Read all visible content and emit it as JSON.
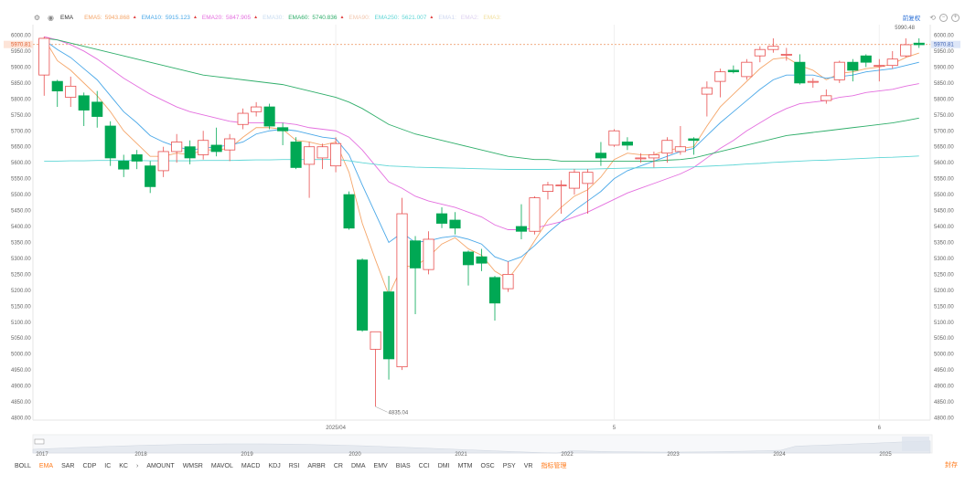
{
  "legend": {
    "indicator": "EMA",
    "items": [
      {
        "label": "EMA5:",
        "value": "5943.868",
        "color": "#f5a66a",
        "arrow": "▲"
      },
      {
        "label": "EMA10:",
        "value": "5915.123",
        "color": "#4aa8e8",
        "arrow": "▲"
      },
      {
        "label": "EMA20:",
        "value": "5847.905",
        "color": "#e46fdf",
        "arrow": "▲"
      },
      {
        "label": "EMA30:",
        "value": "",
        "color": "#c8dcf0",
        "arrow": ""
      },
      {
        "label": "EMA60:",
        "value": "5740.836",
        "color": "#2fae6a",
        "arrow": "▲"
      },
      {
        "label": "EMA90:",
        "value": "",
        "color": "#f2c8b0",
        "arrow": ""
      },
      {
        "label": "EMA250:",
        "value": "5621.007",
        "color": "#5fd6d6",
        "arrow": "▲"
      },
      {
        "label": "EMA1:",
        "value": "",
        "color": "#cfd8f0",
        "arrow": ""
      },
      {
        "label": "EMA2:",
        "value": "",
        "color": "#ddd0f0",
        "arrow": ""
      },
      {
        "label": "EMA3:",
        "value": "",
        "color": "#f2e0a0",
        "arrow": ""
      }
    ]
  },
  "topright": {
    "adjust": "前复权"
  },
  "chart_data": {
    "type": "candlestick",
    "ylim": [
      4770,
      6010
    ],
    "y_ticks": [
      "6000.00",
      "5950.00",
      "5900.00",
      "5850.00",
      "5800.00",
      "5750.00",
      "5700.00",
      "5650.00",
      "5600.00",
      "5550.00",
      "5500.00",
      "5450.00",
      "5400.00",
      "5350.00",
      "5300.00",
      "5250.00",
      "5200.00",
      "5150.00",
      "5100.00",
      "5050.00",
      "5000.00",
      "4950.00",
      "4900.00",
      "4850.00",
      "4800.00"
    ],
    "last_price": "5970.81",
    "high_label": "5990.48",
    "low_label": "4835.04",
    "x_labels": [
      "2025/04",
      "5",
      "6"
    ],
    "candles": [
      [
        5875,
        5990,
        5810,
        5995
      ],
      [
        5855,
        5825,
        5775,
        5860
      ],
      [
        5805,
        5840,
        5775,
        5870
      ],
      [
        5810,
        5765,
        5715,
        5820
      ],
      [
        5790,
        5745,
        5710,
        5825
      ],
      [
        5715,
        5615,
        5590,
        5730
      ],
      [
        5605,
        5580,
        5555,
        5625
      ],
      [
        5625,
        5605,
        5580,
        5640
      ],
      [
        5590,
        5525,
        5505,
        5605
      ],
      [
        5575,
        5635,
        5555,
        5650
      ],
      [
        5635,
        5665,
        5600,
        5690
      ],
      [
        5650,
        5615,
        5595,
        5670
      ],
      [
        5625,
        5670,
        5610,
        5700
      ],
      [
        5655,
        5635,
        5620,
        5710
      ],
      [
        5640,
        5675,
        5605,
        5690
      ],
      [
        5720,
        5755,
        5705,
        5770
      ],
      [
        5760,
        5775,
        5745,
        5790
      ],
      [
        5775,
        5715,
        5705,
        5785
      ],
      [
        5710,
        5700,
        5655,
        5725
      ],
      [
        5665,
        5585,
        5580,
        5680
      ],
      [
        5595,
        5650,
        5490,
        5665
      ],
      [
        5615,
        5650,
        5580,
        5660
      ],
      [
        5590,
        5660,
        5570,
        5680
      ],
      [
        5500,
        5395,
        5390,
        5510
      ],
      [
        5295,
        5075,
        5070,
        5300
      ],
      [
        5015,
        5070,
        4835,
        5070
      ],
      [
        5195,
        4985,
        4920,
        5245
      ],
      [
        4960,
        5440,
        4950,
        5490
      ],
      [
        5355,
        5270,
        5125,
        5370
      ],
      [
        5265,
        5360,
        5250,
        5385
      ],
      [
        5440,
        5410,
        5395,
        5460
      ],
      [
        5420,
        5395,
        5375,
        5445
      ],
      [
        5320,
        5280,
        5215,
        5325
      ],
      [
        5305,
        5285,
        5260,
        5330
      ],
      [
        5240,
        5160,
        5105,
        5245
      ],
      [
        5205,
        5250,
        5195,
        5290
      ],
      [
        5400,
        5385,
        5360,
        5470
      ],
      [
        5385,
        5490,
        5375,
        5495
      ],
      [
        5510,
        5530,
        5485,
        5540
      ],
      [
        5530,
        5530,
        5440,
        5545
      ],
      [
        5520,
        5570,
        5500,
        5580
      ],
      [
        5535,
        5570,
        5440,
        5580
      ],
      [
        5630,
        5615,
        5590,
        5665
      ],
      [
        5655,
        5700,
        5650,
        5705
      ],
      [
        5665,
        5655,
        5640,
        5680
      ],
      [
        5615,
        5615,
        5600,
        5630
      ],
      [
        5615,
        5625,
        5585,
        5635
      ],
      [
        5630,
        5670,
        5600,
        5680
      ],
      [
        5635,
        5650,
        5625,
        5715
      ],
      [
        5675,
        5670,
        5625,
        5680
      ],
      [
        5815,
        5835,
        5745,
        5855
      ],
      [
        5855,
        5885,
        5805,
        5895
      ],
      [
        5890,
        5885,
        5880,
        5905
      ],
      [
        5870,
        5915,
        5860,
        5925
      ],
      [
        5935,
        5955,
        5915,
        5965
      ],
      [
        5955,
        5965,
        5945,
        5990
      ],
      [
        5940,
        5940,
        5920,
        5960
      ],
      [
        5915,
        5850,
        5845,
        5940
      ],
      [
        5855,
        5855,
        5835,
        5865
      ],
      [
        5795,
        5810,
        5785,
        5830
      ],
      [
        5860,
        5915,
        5850,
        5920
      ],
      [
        5915,
        5890,
        5855,
        5925
      ],
      [
        5935,
        5915,
        5900,
        5940
      ],
      [
        5905,
        5905,
        5855,
        5925
      ],
      [
        5905,
        5925,
        5895,
        5950
      ],
      [
        5935,
        5970,
        5930,
        5990
      ],
      [
        5975,
        5970,
        5960,
        5990
      ]
    ],
    "series": [
      {
        "name": "EMA5",
        "color": "#f5a66a",
        "values": [
          5990,
          5920,
          5890,
          5850,
          5810,
          5760,
          5700,
          5660,
          5620,
          5620,
          5630,
          5625,
          5640,
          5640,
          5645,
          5680,
          5710,
          5710,
          5705,
          5670,
          5665,
          5655,
          5665,
          5570,
          5410,
          5295,
          5185,
          5275,
          5275,
          5305,
          5345,
          5365,
          5330,
          5310,
          5260,
          5235,
          5290,
          5355,
          5420,
          5460,
          5495,
          5515,
          5555,
          5610,
          5630,
          5625,
          5625,
          5640,
          5645,
          5650,
          5715,
          5775,
          5815,
          5855,
          5895,
          5925,
          5930,
          5905,
          5890,
          5860,
          5880,
          5885,
          5895,
          5900,
          5910,
          5930,
          5944
        ]
      },
      {
        "name": "EMA10",
        "color": "#4aa8e8",
        "values": [
          5985,
          5955,
          5930,
          5895,
          5860,
          5810,
          5760,
          5725,
          5685,
          5665,
          5650,
          5640,
          5645,
          5650,
          5655,
          5665,
          5690,
          5700,
          5705,
          5700,
          5690,
          5680,
          5675,
          5625,
          5530,
          5440,
          5350,
          5380,
          5350,
          5355,
          5365,
          5370,
          5360,
          5345,
          5305,
          5290,
          5305,
          5340,
          5380,
          5415,
          5450,
          5480,
          5510,
          5550,
          5575,
          5590,
          5605,
          5620,
          5635,
          5645,
          5685,
          5725,
          5760,
          5795,
          5830,
          5860,
          5875,
          5875,
          5875,
          5865,
          5870,
          5875,
          5885,
          5890,
          5895,
          5905,
          5915
        ]
      },
      {
        "name": "EMA20",
        "color": "#e46fdf",
        "values": [
          5995,
          5985,
          5970,
          5950,
          5925,
          5895,
          5865,
          5840,
          5815,
          5795,
          5775,
          5760,
          5750,
          5740,
          5730,
          5725,
          5725,
          5725,
          5725,
          5720,
          5710,
          5705,
          5700,
          5680,
          5640,
          5590,
          5540,
          5520,
          5495,
          5480,
          5470,
          5460,
          5445,
          5430,
          5405,
          5390,
          5390,
          5395,
          5405,
          5415,
          5430,
          5445,
          5465,
          5485,
          5505,
          5520,
          5535,
          5550,
          5565,
          5585,
          5615,
          5645,
          5670,
          5700,
          5725,
          5750,
          5770,
          5785,
          5790,
          5795,
          5805,
          5810,
          5820,
          5825,
          5830,
          5840,
          5848
        ]
      },
      {
        "name": "EMA60",
        "color": "#2fae6a",
        "values": [
          5990,
          5985,
          5975,
          5965,
          5955,
          5945,
          5935,
          5925,
          5915,
          5905,
          5895,
          5885,
          5875,
          5870,
          5865,
          5860,
          5855,
          5850,
          5845,
          5835,
          5825,
          5815,
          5805,
          5790,
          5770,
          5745,
          5720,
          5705,
          5690,
          5680,
          5670,
          5660,
          5650,
          5640,
          5630,
          5620,
          5615,
          5610,
          5610,
          5605,
          5605,
          5605,
          5605,
          5605,
          5605,
          5605,
          5605,
          5608,
          5610,
          5615,
          5625,
          5635,
          5645,
          5655,
          5665,
          5675,
          5685,
          5690,
          5695,
          5700,
          5705,
          5710,
          5715,
          5720,
          5725,
          5732,
          5740
        ]
      },
      {
        "name": "EMA250",
        "color": "#5fd6d6",
        "values": [
          5605,
          5605,
          5606,
          5606,
          5607,
          5607,
          5607,
          5607,
          5606,
          5606,
          5606,
          5606,
          5607,
          5607,
          5607,
          5608,
          5609,
          5609,
          5610,
          5610,
          5610,
          5610,
          5611,
          5606,
          5600,
          5595,
          5590,
          5588,
          5586,
          5585,
          5584,
          5583,
          5582,
          5581,
          5580,
          5579,
          5579,
          5579,
          5579,
          5580,
          5580,
          5580,
          5581,
          5582,
          5583,
          5584,
          5584,
          5585,
          5586,
          5587,
          5589,
          5591,
          5593,
          5596,
          5598,
          5601,
          5603,
          5605,
          5607,
          5608,
          5610,
          5612,
          5614,
          5616,
          5617,
          5619,
          5621
        ]
      }
    ],
    "timeline_labels": [
      "2017",
      "2018",
      "2019",
      "2020",
      "2021",
      "2022",
      "2023",
      "2024",
      "2025"
    ]
  },
  "indicators": [
    "BOLL",
    "EMA",
    "SAR",
    "CDP",
    "IC",
    "KC",
    "AMOUNT",
    "WMSR",
    "MAVOL",
    "MACD",
    "KDJ",
    "RSI",
    "ARBR",
    "CR",
    "DMA",
    "EMV",
    "BIAS",
    "CCI",
    "DMI",
    "MTM",
    "OSC",
    "PSY",
    "VR"
  ],
  "active_indicator": "EMA",
  "indicator_more": "›",
  "indicator_manage": "指标管理",
  "seal": "封存"
}
